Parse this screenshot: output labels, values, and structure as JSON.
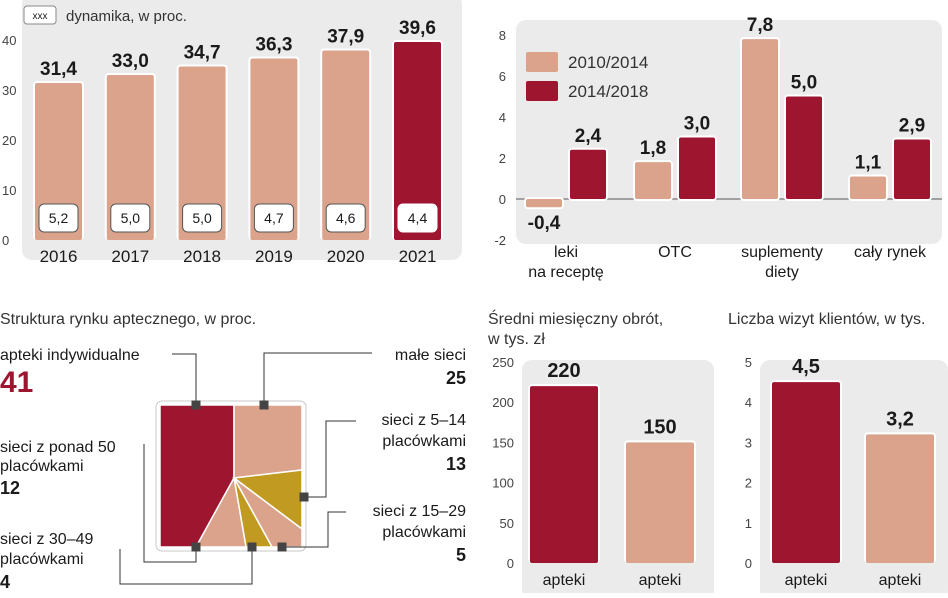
{
  "colors": {
    "light": "#dba38b",
    "dark": "#9e1530",
    "ochre": "#c19a22",
    "panel": "#ebebeb",
    "text": "#1a1a1a"
  },
  "chart_data": [
    {
      "id": "market-value",
      "type": "bar",
      "legend_box": "xxx",
      "subtitle": "dynamika, w proc.",
      "categories": [
        "2016",
        "2017",
        "2018",
        "2019",
        "2020",
        "2021"
      ],
      "values": [
        31.4,
        33.0,
        34.7,
        36.3,
        37.9,
        39.6
      ],
      "value_labels": [
        "31,4",
        "33,0",
        "34,7",
        "36,3",
        "37,9",
        "39,6"
      ],
      "growth_labels": [
        "5,2",
        "5,0",
        "5,0",
        "4,7",
        "4,6",
        "4,4"
      ],
      "highlight_index": 5,
      "yticks": [
        0,
        10,
        20,
        30,
        40
      ],
      "ylim": [
        0,
        40
      ]
    },
    {
      "id": "segment-growth",
      "type": "bar",
      "series": [
        {
          "name": "2010/2014",
          "values": [
            -0.4,
            1.8,
            7.8,
            1.1
          ],
          "labels": [
            "-0,4",
            "1,8",
            "7,8",
            "1,1"
          ]
        },
        {
          "name": "2014/2018",
          "values": [
            2.4,
            3.0,
            5.0,
            2.9
          ],
          "labels": [
            "2,4",
            "3,0",
            "5,0",
            "2,9"
          ]
        }
      ],
      "categories": [
        [
          "leki",
          "na receptę"
        ],
        [
          "OTC"
        ],
        [
          "suplementy",
          "diety"
        ],
        [
          "cały rynek"
        ]
      ],
      "yticks": [
        -2,
        0,
        2,
        4,
        6,
        8
      ],
      "ylim": [
        -2,
        8
      ]
    },
    {
      "id": "market-structure",
      "type": "pie",
      "title": "Struktura rynku aptecznego, w proc.",
      "slices": [
        {
          "name": "apteki indywidualne",
          "value": 41
        },
        {
          "name": "małe sieci",
          "value": 25
        },
        {
          "name": "sieci z 5–14 placówkami",
          "value": 13
        },
        {
          "name": "sieci z 15–29 placówkami",
          "value": 5
        },
        {
          "name": "sieci z 30–49 placówkami",
          "value": 4
        },
        {
          "name": "sieci z ponad 50 placówkami",
          "value": 12
        }
      ],
      "labels": {
        "indyw": {
          "lines": [
            "apteki indywidualne"
          ],
          "value": "41"
        },
        "male": {
          "lines": [
            "małe sieci"
          ],
          "value": "25"
        },
        "s514": {
          "lines": [
            "sieci z 5–14",
            "placówkami"
          ],
          "value": "13"
        },
        "s1529": {
          "lines": [
            "sieci z 15–29",
            "placówkami"
          ],
          "value": "5"
        },
        "s3049": {
          "lines": [
            "sieci z 30–49",
            "placówkami"
          ],
          "value": "4"
        },
        "s50": {
          "lines": [
            "sieci z ponad 50",
            "placówkami"
          ],
          "value": "12"
        }
      }
    },
    {
      "id": "turnover",
      "type": "bar",
      "title": [
        "Średni miesięczny obrót,",
        "w tys. zł"
      ],
      "categories": [
        "apteki",
        "apteki"
      ],
      "values": [
        220,
        150
      ],
      "value_labels": [
        "220",
        "150"
      ],
      "yticks": [
        0,
        50,
        100,
        150,
        200,
        250
      ],
      "ylim": [
        0,
        250
      ]
    },
    {
      "id": "visits",
      "type": "bar",
      "title": [
        "Liczba wizyt klientów, w tys."
      ],
      "categories": [
        "apteki",
        "apteki"
      ],
      "values": [
        4.5,
        3.2
      ],
      "value_labels": [
        "4,5",
        "3,2"
      ],
      "yticks": [
        0,
        1,
        2,
        3,
        4,
        5
      ],
      "ylim": [
        0,
        5
      ]
    }
  ]
}
